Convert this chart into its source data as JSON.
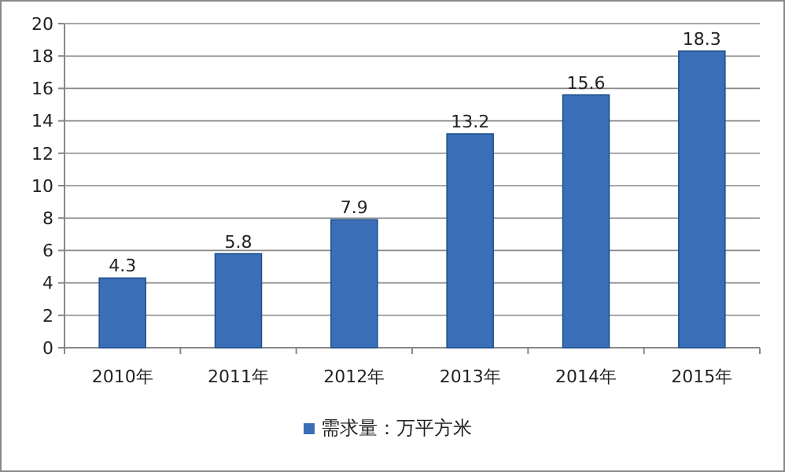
{
  "chart_data": {
    "type": "bar",
    "categories": [
      "2010年",
      "2011年",
      "2012年",
      "2013年",
      "2014年",
      "2015年"
    ],
    "series": [
      {
        "name": "需求量：万平方米",
        "color": "#3a6fb8",
        "values": [
          4.3,
          5.8,
          7.9,
          13.2,
          15.6,
          18.3
        ]
      }
    ],
    "ylim": [
      0,
      20
    ],
    "yticks": [
      0,
      2,
      4,
      6,
      8,
      10,
      12,
      14,
      16,
      18,
      20
    ],
    "grid": "y",
    "data_labels": true,
    "legend": "bottom"
  }
}
